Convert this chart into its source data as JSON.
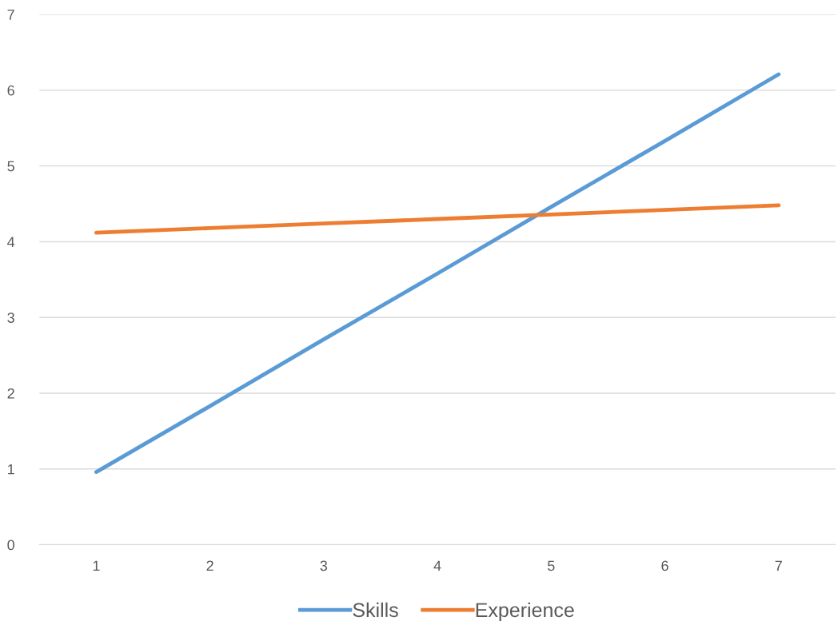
{
  "chart_data": {
    "type": "line",
    "categories": [
      "1",
      "2",
      "3",
      "4",
      "5",
      "6",
      "7"
    ],
    "series": [
      {
        "name": "Skills",
        "color": "#5b9bd5",
        "values": [
          0.96,
          1.83,
          2.71,
          3.58,
          4.46,
          5.33,
          6.21
        ]
      },
      {
        "name": "Experience",
        "color": "#ed7d31",
        "values": [
          4.12,
          4.18,
          4.24,
          4.3,
          4.36,
          4.42,
          4.48
        ]
      }
    ],
    "ylim": [
      0,
      7
    ],
    "yticks": [
      0,
      1,
      2,
      3,
      4,
      5,
      6,
      7
    ],
    "grid": "y",
    "legend": "bottom",
    "marker": "none",
    "line_style": "solid"
  }
}
